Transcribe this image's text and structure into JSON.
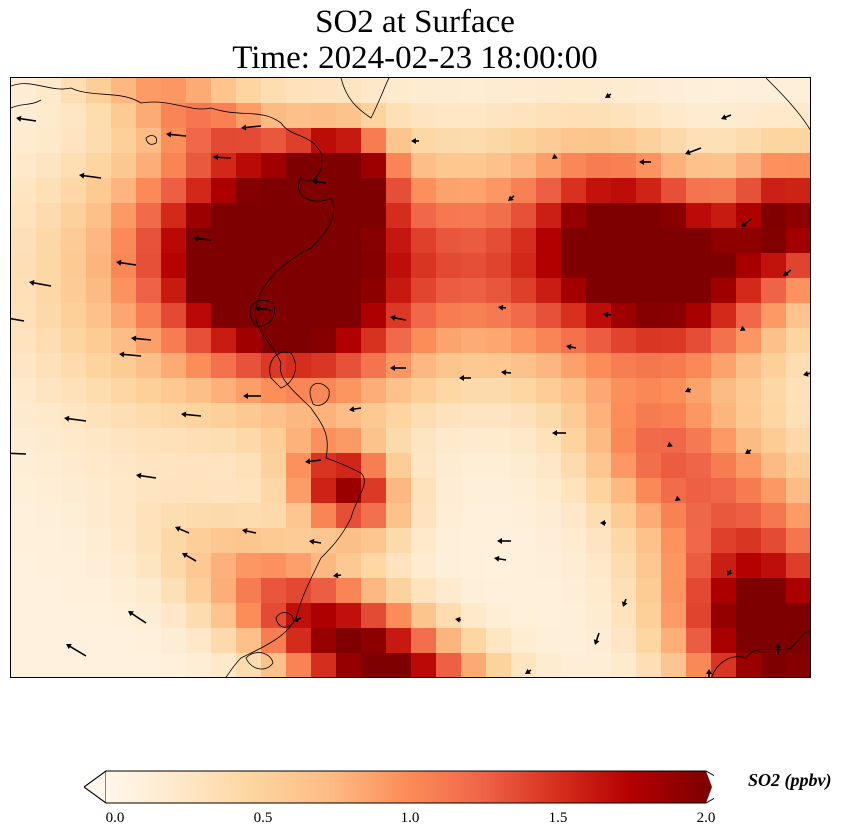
{
  "title": {
    "line1": "SO2 at Surface",
    "line2": "Time: 2024-02-23 18:00:00"
  },
  "colorbar": {
    "label": "SO2 (ppbv)",
    "min": 0.0,
    "max": 2.0,
    "extend": "both",
    "ticks": [
      "0.0",
      "0.5",
      "1.0",
      "1.5",
      "2.0"
    ],
    "colormap": "OrRd",
    "stops": [
      "#fff7ec",
      "#fee8c8",
      "#fdd49e",
      "#fdbb84",
      "#fc8d59",
      "#ef6548",
      "#d7301f",
      "#b30000",
      "#7f0000"
    ]
  },
  "map": {
    "field": "SO2 concentration",
    "background_level": 0.1,
    "coastline_color": "#000000",
    "vector_color": "#000000"
  }
}
